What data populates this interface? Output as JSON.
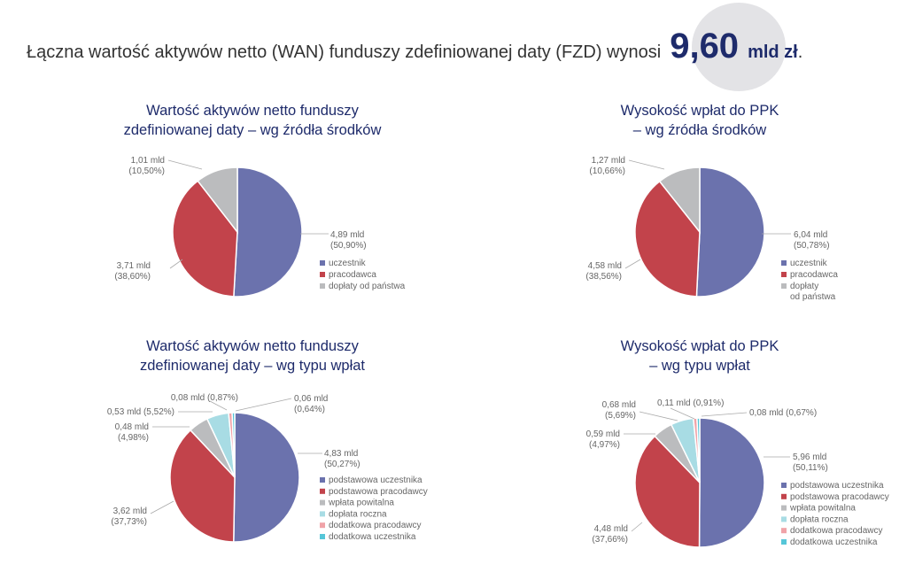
{
  "header": {
    "text": "Łączna wartość aktywów netto (WAN) funduszy zdefiniowanej daty (FZD) wynosi",
    "value": "9,60",
    "unit": "mld zł",
    "dot": "."
  },
  "colors": {
    "uczestnik": "#6b72ad",
    "pracodawca": "#c2434b",
    "panstwo": "#bbbcbe",
    "doplata_roczna": "#a8dce4",
    "dodatkowa_pracodawcy": "#f0a3a8",
    "dodatkowa_uczestnika": "#56c6d8"
  },
  "chart_data": [
    {
      "type": "pie",
      "title": [
        "Wartość aktywów netto funduszy",
        "zdefiniowanej daty – wg źródła środków"
      ],
      "slices": [
        {
          "name": "uczestnik",
          "value": 4.89,
          "percent": 50.9,
          "color": "#6b72ad",
          "label": [
            "4,89 mld",
            "(50,90%)"
          ]
        },
        {
          "name": "pracodawca",
          "value": 3.71,
          "percent": 38.6,
          "color": "#c2434b",
          "label": [
            "3,71 mld",
            "(38,60%)"
          ]
        },
        {
          "name": "dopłaty od państwa",
          "value": 1.01,
          "percent": 10.5,
          "color": "#bbbcbe",
          "label": [
            "1,01 mld",
            "(10,50%)"
          ]
        }
      ],
      "legend": [
        "uczestnik",
        "pracodawca",
        "dopłaty od państwa"
      ]
    },
    {
      "type": "pie",
      "title": [
        "Wysokość wpłat do PPK",
        "– wg źródła środków"
      ],
      "slices": [
        {
          "name": "uczestnik",
          "value": 6.04,
          "percent": 50.78,
          "color": "#6b72ad",
          "label": [
            "6,04 mld",
            "(50,78%)"
          ]
        },
        {
          "name": "pracodawca",
          "value": 4.58,
          "percent": 38.56,
          "color": "#c2434b",
          "label": [
            "4,58 mld",
            "(38,56%)"
          ]
        },
        {
          "name": "dopłaty od państwa",
          "value": 1.27,
          "percent": 10.66,
          "color": "#bbbcbe",
          "label": [
            "1,27 mld",
            "(10,66%)"
          ]
        }
      ],
      "legend": [
        "uczestnik",
        "pracodawca",
        [
          "dopłaty",
          "od państwa"
        ]
      ]
    },
    {
      "type": "pie",
      "title": [
        "Wartość aktywów netto funduszy",
        "zdefiniowanej daty – wg typu wpłat"
      ],
      "slices": [
        {
          "name": "podstawowa uczestnika",
          "value": 4.83,
          "percent": 50.27,
          "color": "#6b72ad",
          "label": [
            "4,83 mld",
            "(50,27%)"
          ]
        },
        {
          "name": "podstawowa pracodawcy",
          "value": 3.62,
          "percent": 37.73,
          "color": "#c2434b",
          "label": [
            "3,62 mld",
            "(37,73%)"
          ]
        },
        {
          "name": "wpłata powitalna",
          "value": 0.48,
          "percent": 4.98,
          "color": "#bbbcbe",
          "label": [
            "0,48 mld",
            "(4,98%)"
          ]
        },
        {
          "name": "dopłata roczna",
          "value": 0.53,
          "percent": 5.52,
          "color": "#a8dce4",
          "label": [
            "0,53 mld (5,52%)"
          ]
        },
        {
          "name": "dodatkowa pracodawcy",
          "value": 0.08,
          "percent": 0.87,
          "color": "#f0a3a8",
          "label": [
            "0,08 mld (0,87%)"
          ]
        },
        {
          "name": "dodatkowa uczestnika",
          "value": 0.06,
          "percent": 0.64,
          "color": "#56c6d8",
          "label": [
            "0,06 mld",
            "(0,64%)"
          ]
        }
      ],
      "legend": [
        "podstawowa uczestnika",
        "podstawowa pracodawcy",
        "wpłata powitalna",
        "dopłata roczna",
        "dodatkowa pracodawcy",
        "dodatkowa uczestnika"
      ]
    },
    {
      "type": "pie",
      "title": [
        "Wysokość wpłat do PPK",
        "– wg typu wpłat"
      ],
      "slices": [
        {
          "name": "podstawowa uczestnika",
          "value": 5.96,
          "percent": 50.11,
          "color": "#6b72ad",
          "label": [
            "5,96 mld",
            "(50,11%)"
          ]
        },
        {
          "name": "podstawowa pracodawcy",
          "value": 4.48,
          "percent": 37.66,
          "color": "#c2434b",
          "label": [
            "4,48 mld",
            "(37,66%)"
          ]
        },
        {
          "name": "wpłata powitalna",
          "value": 0.59,
          "percent": 4.97,
          "color": "#bbbcbe",
          "label": [
            "0,59 mld",
            "(4,97%)"
          ]
        },
        {
          "name": "dopłata roczna",
          "value": 0.68,
          "percent": 5.69,
          "color": "#a8dce4",
          "label": [
            "0,68 mld",
            "(5,69%)"
          ]
        },
        {
          "name": "dodatkowa pracodawcy",
          "value": 0.11,
          "percent": 0.91,
          "color": "#f0a3a8",
          "label": [
            "0,11 mld (0,91%)"
          ]
        },
        {
          "name": "dodatkowa uczestnika",
          "value": 0.08,
          "percent": 0.67,
          "color": "#56c6d8",
          "label": [
            "0,08 mld (0,67%)"
          ]
        }
      ],
      "legend": [
        "podstawowa uczestnika",
        "podstawowa pracodawcy",
        "wpłata powitalna",
        "dopłata roczna",
        "dodatkowa pracodawcy",
        "dodatkowa uczestnika"
      ]
    }
  ]
}
